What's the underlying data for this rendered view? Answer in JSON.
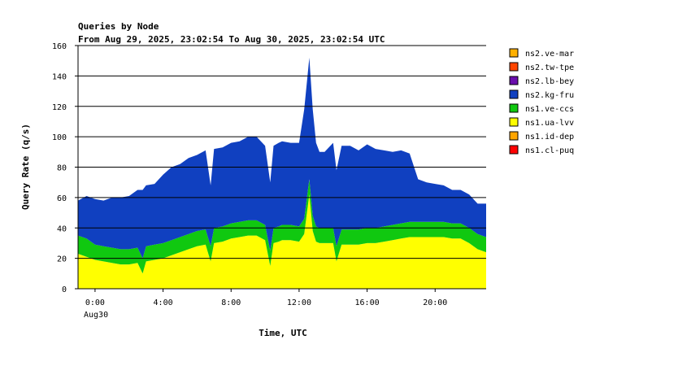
{
  "chart_data": {
    "type": "area",
    "title": "Queries by Node",
    "subtitle": "From Aug 29, 2025, 23:02:54 To Aug 30, 2025, 23:02:54 UTC",
    "xlabel": "Time, UTC",
    "ylabel": "Query Rate (q/s)",
    "ylim": [
      0,
      160
    ],
    "yticks": [
      0,
      20,
      40,
      60,
      80,
      100,
      120,
      140,
      160
    ],
    "xlim": [
      -1,
      23
    ],
    "xticks": [
      {
        "x": 0,
        "label": "0:00"
      },
      {
        "x": 4,
        "label": "4:00"
      },
      {
        "x": 8,
        "label": "8:00"
      },
      {
        "x": 12,
        "label": "12:00"
      },
      {
        "x": 16,
        "label": "16:00"
      },
      {
        "x": 20,
        "label": "20:00"
      }
    ],
    "date_label": "Aug30",
    "grid": true,
    "stacked": true,
    "legend_position": "right",
    "x_hours": [
      -1,
      -0.5,
      0,
      0.5,
      1,
      1.5,
      2,
      2.5,
      2.8,
      3,
      3.5,
      4,
      4.5,
      5,
      5.5,
      6,
      6.5,
      6.8,
      7,
      7.5,
      8,
      8.5,
      9,
      9.5,
      10,
      10.3,
      10.5,
      10.8,
      11,
      11.5,
      12,
      12.3,
      12.6,
      12.8,
      13,
      13.2,
      13.5,
      14,
      14.2,
      14.5,
      15,
      15.5,
      16,
      16.5,
      17,
      17.5,
      18,
      18.5,
      19,
      19.5,
      20,
      20.5,
      21,
      21.5,
      22,
      22.5,
      23
    ],
    "series": [
      {
        "name": "ns2.ve-mar",
        "color": "#ffb000",
        "values": [
          0,
          0,
          0,
          0,
          0,
          0,
          0,
          0,
          0,
          0,
          0,
          0,
          0,
          0,
          0,
          0,
          0,
          0,
          0,
          0,
          0,
          0,
          0,
          0,
          0,
          0,
          0,
          0,
          0,
          0,
          0,
          0,
          0,
          0,
          0,
          0,
          0,
          0,
          0,
          0,
          0,
          0,
          0,
          0,
          0,
          0,
          0,
          0,
          0,
          0,
          0,
          0,
          0,
          0,
          0,
          0,
          0
        ]
      },
      {
        "name": "ns2.tw-tpe",
        "color": "#ff4500",
        "values": [
          0,
          0,
          0,
          0,
          0,
          0,
          0,
          0,
          0,
          0,
          0,
          0,
          0,
          0,
          0,
          0,
          0,
          0,
          0,
          0,
          0,
          0,
          0,
          0,
          0,
          0,
          0,
          0,
          0,
          0,
          0,
          0,
          0,
          0,
          0,
          0,
          0,
          0,
          0,
          0,
          0,
          0,
          0,
          0,
          0,
          0,
          0,
          0,
          0,
          0,
          0,
          0,
          0,
          0,
          0,
          0,
          0
        ]
      },
      {
        "name": "ns2.lb-bey",
        "color": "#6a0dad",
        "values": [
          0,
          0,
          0,
          0,
          0,
          0,
          0,
          0,
          0,
          0,
          0,
          0,
          0,
          0,
          0,
          0,
          0,
          0,
          0,
          0,
          0,
          0,
          0,
          0,
          0,
          0,
          0,
          0,
          0,
          0,
          0,
          0,
          0,
          0,
          0,
          0,
          0,
          0,
          0,
          0,
          0,
          0,
          0,
          0,
          0,
          0,
          0,
          0,
          0,
          0,
          0,
          0,
          0,
          0,
          0,
          0,
          0
        ]
      },
      {
        "name": "ns2.kg-fru",
        "color": "#1040c0",
        "values": [
          23,
          28,
          30,
          30,
          33,
          34,
          35,
          38,
          45,
          40,
          40,
          45,
          48,
          48,
          50,
          50,
          52,
          40,
          52,
          52,
          53,
          53,
          55,
          55,
          52,
          45,
          54,
          55,
          55,
          54,
          55,
          72,
          80,
          70,
          55,
          50,
          50,
          56,
          50,
          55,
          55,
          52,
          55,
          52,
          50,
          48,
          48,
          45,
          28,
          26,
          25,
          24,
          22,
          22,
          22,
          20,
          22
        ]
      },
      {
        "name": "ns1.ve-ccs",
        "color": "#10c810",
        "values": [
          12,
          12,
          10,
          10,
          10,
          10,
          10,
          10,
          10,
          10,
          10,
          10,
          10,
          10,
          10,
          10,
          10,
          10,
          10,
          10,
          10,
          10,
          10,
          10,
          10,
          10,
          10,
          10,
          10,
          10,
          10,
          10,
          10,
          10,
          10,
          10,
          10,
          10,
          10,
          10,
          10,
          10,
          10,
          10,
          10,
          10,
          10,
          10,
          10,
          10,
          10,
          10,
          10,
          10,
          10,
          10,
          10
        ]
      },
      {
        "name": "ns1.ua-lvv",
        "color": "#ffff00",
        "values": [
          23,
          21,
          19,
          18,
          17,
          16,
          16,
          17,
          10,
          18,
          19,
          20,
          22,
          24,
          26,
          28,
          29,
          18,
          30,
          31,
          33,
          34,
          35,
          35,
          32,
          15,
          30,
          31,
          32,
          32,
          31,
          36,
          62,
          38,
          31,
          30,
          30,
          30,
          18,
          29,
          29,
          29,
          30,
          30,
          31,
          32,
          33,
          34,
          34,
          34,
          34,
          34,
          33,
          33,
          30,
          26,
          24
        ]
      },
      {
        "name": "ns1.id-dep",
        "color": "#ffa500",
        "values": [
          0,
          0,
          0,
          0,
          0,
          0,
          0,
          0,
          0,
          0,
          0,
          0,
          0,
          0,
          0,
          0,
          0,
          0,
          0,
          0,
          0,
          0,
          0,
          0,
          0,
          0,
          0,
          0,
          0,
          0,
          0,
          0,
          0,
          0,
          0,
          0,
          0,
          0,
          0,
          0,
          0,
          0,
          0,
          0,
          0,
          0,
          0,
          0,
          0,
          0,
          0,
          0,
          0,
          0,
          0,
          0,
          0
        ]
      },
      {
        "name": "ns1.cl-puq",
        "color": "#ff0000",
        "values": [
          0,
          0,
          0,
          0,
          0,
          0,
          0,
          0,
          0,
          0,
          0,
          0,
          0,
          0,
          0,
          0,
          0,
          0,
          0,
          0,
          0,
          0,
          0,
          0,
          0,
          0,
          0,
          0,
          0,
          0,
          0,
          0,
          0,
          0,
          0,
          0,
          0,
          0,
          0,
          0,
          0,
          0,
          0,
          0,
          0,
          0,
          0,
          0,
          0,
          0,
          0,
          0,
          0,
          0,
          0,
          0,
          0
        ]
      }
    ]
  }
}
